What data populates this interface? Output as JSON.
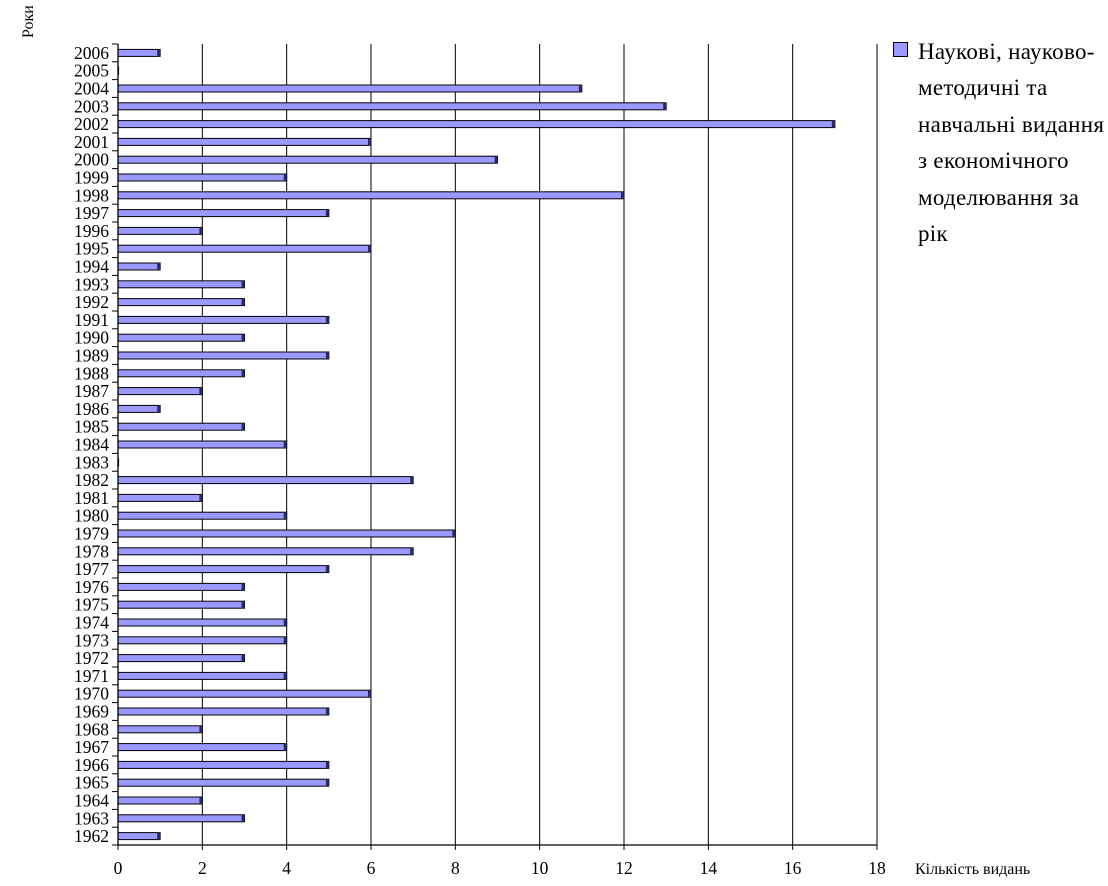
{
  "chart_data": {
    "type": "bar",
    "orientation": "horizontal",
    "title": "",
    "ylabel": "Роки",
    "xlabel": "Кількість видань",
    "xlim": [
      0,
      18
    ],
    "xticks": [
      0,
      2,
      4,
      6,
      8,
      10,
      12,
      14,
      16,
      18
    ],
    "grid": "vertical",
    "legend_position": "right",
    "bar_color": "#9999ff",
    "categories": [
      "1962",
      "1963",
      "1964",
      "1965",
      "1966",
      "1967",
      "1968",
      "1969",
      "1970",
      "1971",
      "1972",
      "1973",
      "1974",
      "1975",
      "1976",
      "1977",
      "1978",
      "1979",
      "1980",
      "1981",
      "1982",
      "1983",
      "1984",
      "1985",
      "1986",
      "1987",
      "1988",
      "1989",
      "1990",
      "1991",
      "1992",
      "1993",
      "1994",
      "1995",
      "1996",
      "1997",
      "1998",
      "1999",
      "2000",
      "2001",
      "2002",
      "2003",
      "2004",
      "2005",
      "2006"
    ],
    "series": [
      {
        "name": "Наукові, науково-методичні та навчальні видання з економічного моделювання за рік",
        "values": [
          1,
          3,
          2,
          5,
          5,
          4,
          2,
          5,
          6,
          4,
          3,
          4,
          4,
          3,
          3,
          5,
          7,
          8,
          4,
          2,
          7,
          0,
          4,
          3,
          1,
          2,
          3,
          5,
          3,
          5,
          3,
          3,
          1,
          6,
          2,
          5,
          12,
          4,
          9,
          6,
          17,
          13,
          11,
          0,
          1
        ]
      }
    ]
  },
  "legend": {
    "text": "Наукові, науково-методичні та навчальні видання з економічного моделювання за рік"
  }
}
